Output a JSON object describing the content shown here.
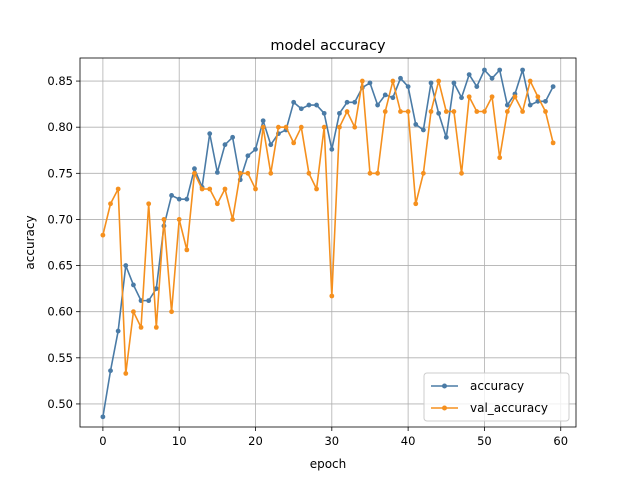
{
  "chart_data": {
    "type": "line",
    "title": "model accuracy",
    "xlabel": "epoch",
    "ylabel": "accuracy",
    "xlim": [
      -3,
      62
    ],
    "ylim": [
      0.475,
      0.875
    ],
    "xticks": [
      0,
      10,
      20,
      30,
      40,
      50,
      60
    ],
    "yticks": [
      0.5,
      0.55,
      0.6,
      0.65,
      0.7,
      0.75,
      0.8,
      0.85
    ],
    "grid": true,
    "legend_position": "lower-right",
    "x": [
      0,
      1,
      2,
      3,
      4,
      5,
      6,
      7,
      8,
      9,
      10,
      11,
      12,
      13,
      14,
      15,
      16,
      17,
      18,
      19,
      20,
      21,
      22,
      23,
      24,
      25,
      26,
      27,
      28,
      29,
      30,
      31,
      32,
      33,
      34,
      35,
      36,
      37,
      38,
      39,
      40,
      41,
      42,
      43,
      44,
      45,
      46,
      47,
      48,
      49,
      50,
      51,
      52,
      53,
      54,
      55,
      56,
      57,
      58,
      59
    ],
    "series": [
      {
        "name": "accuracy",
        "color": "#4a7ba6",
        "values": [
          0.486,
          0.536,
          0.579,
          0.65,
          0.629,
          0.612,
          0.612,
          0.625,
          0.693,
          0.726,
          0.722,
          0.722,
          0.755,
          0.735,
          0.793,
          0.751,
          0.781,
          0.789,
          0.743,
          0.769,
          0.776,
          0.807,
          0.781,
          0.793,
          0.797,
          0.827,
          0.82,
          0.824,
          0.824,
          0.815,
          0.776,
          0.815,
          0.827,
          0.827,
          0.843,
          0.848,
          0.824,
          0.835,
          0.832,
          0.853,
          0.844,
          0.803,
          0.797,
          0.848,
          0.815,
          0.789,
          0.848,
          0.832,
          0.857,
          0.844,
          0.862,
          0.853,
          0.862,
          0.824,
          0.836,
          0.862,
          0.824,
          0.828,
          0.828,
          0.844
        ]
      },
      {
        "name": "val_accuracy",
        "color": "#f5901e",
        "values": [
          0.683,
          0.717,
          0.733,
          0.533,
          0.6,
          0.583,
          0.717,
          0.583,
          0.7,
          0.6,
          0.7,
          0.667,
          0.75,
          0.733,
          0.733,
          0.717,
          0.733,
          0.7,
          0.75,
          0.75,
          0.733,
          0.8,
          0.75,
          0.8,
          0.8,
          0.783,
          0.8,
          0.75,
          0.733,
          0.8,
          0.617,
          0.8,
          0.817,
          0.8,
          0.85,
          0.75,
          0.75,
          0.817,
          0.85,
          0.817,
          0.817,
          0.717,
          0.75,
          0.817,
          0.85,
          0.817,
          0.817,
          0.75,
          0.833,
          0.817,
          0.817,
          0.833,
          0.767,
          0.817,
          0.833,
          0.817,
          0.85,
          0.833,
          0.817,
          0.783
        ]
      }
    ]
  }
}
